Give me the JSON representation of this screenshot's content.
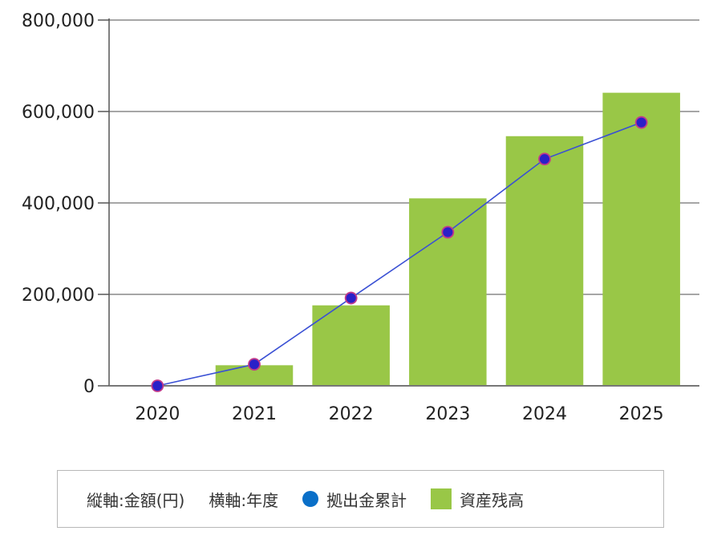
{
  "chart_data": {
    "type": "bar",
    "categories": [
      "2020",
      "2021",
      "2022",
      "2023",
      "2024",
      "2025"
    ],
    "series": [
      {
        "name": "資産残高",
        "type": "bar",
        "values": [
          0,
          45000,
          176000,
          410000,
          546000,
          641000
        ]
      },
      {
        "name": "拠出金累計",
        "type": "line",
        "values": [
          0,
          47000,
          192000,
          336000,
          496000,
          576000
        ]
      }
    ],
    "yticks": [
      "0",
      "200,000",
      "400,000",
      "600,000",
      "800,000"
    ],
    "ylim": [
      0,
      800000
    ],
    "grid": true,
    "legend_position": "bottom"
  },
  "legend": {
    "y_axis_note": "縦軸:金額(円)",
    "x_axis_note": "横軸:年度",
    "line_series_label": "拠出金累計",
    "bar_series_label": "資産残高"
  },
  "colors": {
    "bar": "#99c747",
    "line": "#3a50d4",
    "marker": "#2a20c8",
    "marker_outline": "#c23a8a",
    "legend_dot": "#0a6fc8",
    "grid": "#888888"
  }
}
